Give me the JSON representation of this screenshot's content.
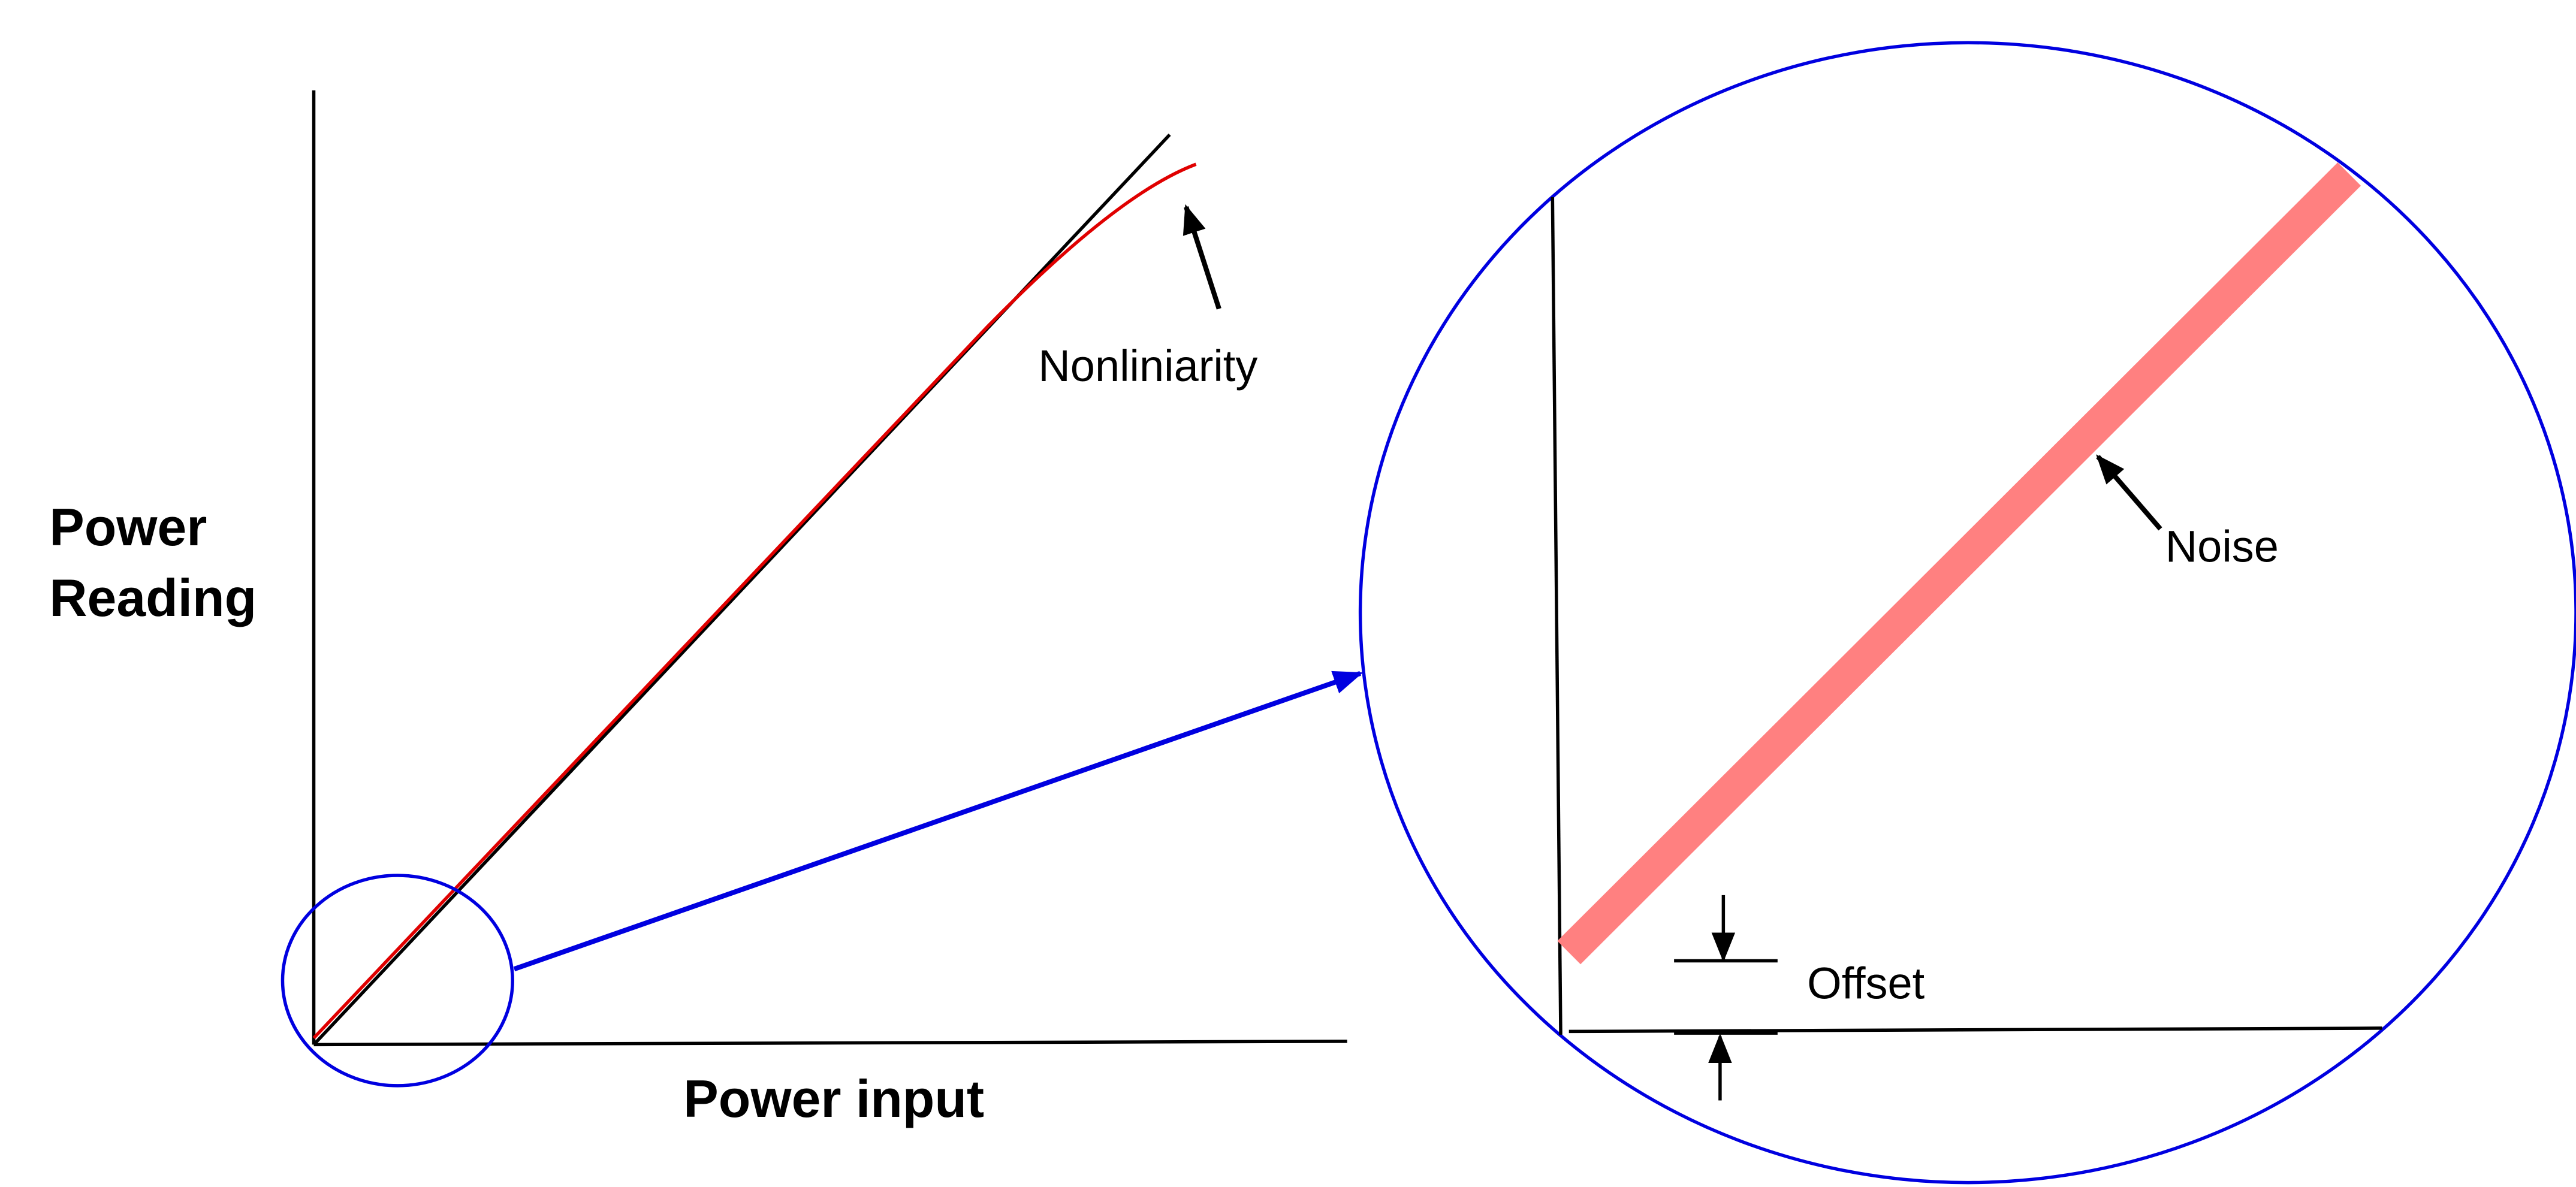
{
  "y_axis_label": [
    "Power",
    "Reading"
  ],
  "x_axis_label": "Power input",
  "annotations": {
    "nonlinearity": "Nonliniarity",
    "noise": "Noise",
    "offset": "Offset"
  }
}
